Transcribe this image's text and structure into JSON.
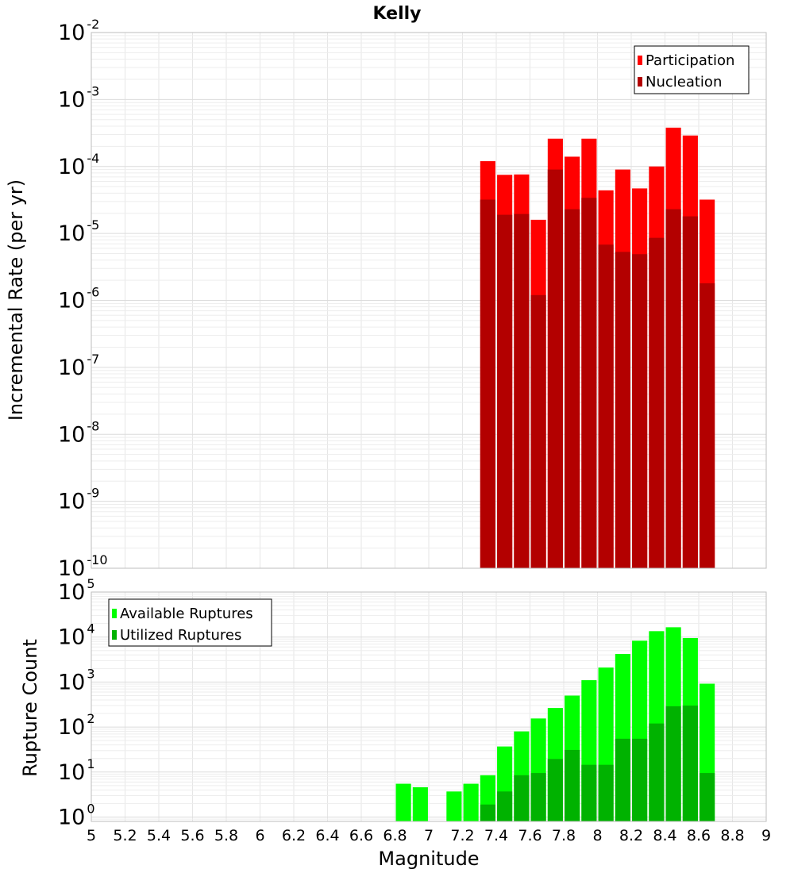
{
  "title": "Kelly",
  "chart_data": [
    {
      "type": "bar",
      "scale": "log",
      "ylabel": "Incremental Rate (per yr)",
      "ylim": [
        1e-10,
        0.01
      ],
      "ytick_exponents": [
        -10,
        -9,
        -8,
        -7,
        -6,
        -5,
        -4,
        -3,
        -2
      ],
      "xlim": [
        5,
        9
      ],
      "grid": true,
      "legend_position": "top-right",
      "series": [
        {
          "name": "Participation",
          "color": "#ff0000",
          "x": [
            7.35,
            7.45,
            7.55,
            7.65,
            7.75,
            7.85,
            7.95,
            8.05,
            8.15,
            8.25,
            8.35,
            8.45,
            8.55,
            8.65
          ],
          "values": [
            0.00012,
            7.5e-05,
            7.6e-05,
            1.6e-05,
            0.00026,
            0.00014,
            0.00026,
            4.4e-05,
            9e-05,
            4.7e-05,
            0.0001,
            0.00038,
            0.00029,
            3.2e-05
          ]
        },
        {
          "name": "Nucleation",
          "color": "#b30000",
          "x": [
            7.35,
            7.45,
            7.55,
            7.65,
            7.75,
            7.85,
            7.95,
            8.05,
            8.15,
            8.25,
            8.35,
            8.45,
            8.55,
            8.65
          ],
          "values": [
            3.2e-05,
            1.9e-05,
            1.95e-05,
            1.2e-06,
            9e-05,
            2.3e-05,
            3.4e-05,
            6.8e-06,
            5.3e-06,
            4.9e-06,
            8.6e-06,
            2.3e-05,
            1.8e-05,
            1.8e-06
          ]
        }
      ]
    },
    {
      "type": "bar",
      "scale": "log",
      "ylabel": "Rupture Count",
      "xlabel": "Magnitude",
      "ylim": [
        0.8,
        100000.0
      ],
      "ytick_exponents": [
        0,
        1,
        2,
        3,
        4,
        5
      ],
      "xlim": [
        5,
        9
      ],
      "x_tick_labels": [
        "5",
        "5.2",
        "5.4",
        "5.6",
        "5.8",
        "6",
        "6.2",
        "6.4",
        "6.6",
        "6.8",
        "7",
        "7.2",
        "7.4",
        "7.6",
        "7.8",
        "8",
        "8.2",
        "8.4",
        "8.6",
        "8.8",
        "9"
      ],
      "grid": true,
      "legend_position": "top-left",
      "series": [
        {
          "name": "Available Ruptures",
          "color": "#00ff00",
          "x": [
            6.85,
            6.95,
            7.15,
            7.25,
            7.35,
            7.45,
            7.55,
            7.65,
            7.75,
            7.85,
            7.95,
            8.05,
            8.15,
            8.25,
            8.35,
            8.45,
            8.55,
            8.65
          ],
          "values": [
            5.5,
            4.6,
            3.7,
            5.5,
            8.5,
            37,
            80,
            155,
            265,
            500,
            1100,
            2100,
            4200,
            8300,
            13500,
            16500,
            9500,
            920
          ]
        },
        {
          "name": "Utilized Ruptures",
          "color": "#00b200",
          "x": [
            7.35,
            7.45,
            7.55,
            7.65,
            7.75,
            7.85,
            7.95,
            8.05,
            8.15,
            8.25,
            8.35,
            8.45,
            8.55,
            8.65
          ],
          "values": [
            1.9,
            3.7,
            8.5,
            9.5,
            19.5,
            31,
            14.5,
            14.5,
            55,
            55,
            120,
            290,
            300,
            9.5
          ]
        }
      ]
    }
  ]
}
